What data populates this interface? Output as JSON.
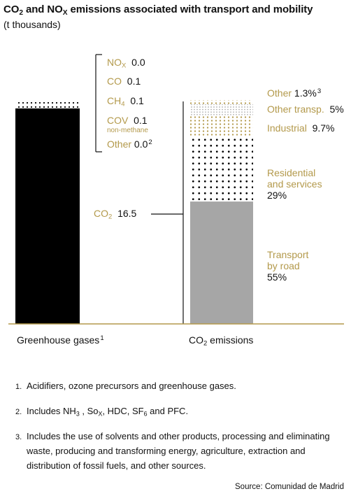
{
  "title": {
    "prefix": "CO",
    "sub1": "2",
    "mid": " and NO",
    "sub2": "X",
    "suffix": " emissions associated with transport and mobility"
  },
  "subtitle": "(t thousands)",
  "colors": {
    "gold": "#b3994b",
    "black": "#000000",
    "gray": "#a6a6a6",
    "axis": "#b3994b"
  },
  "chart_data": [
    {
      "type": "bar",
      "title": "Greenhouse gases",
      "title_sup": "1",
      "unit": "t thousands",
      "segments": [
        {
          "name": "NO",
          "name_sub": "X",
          "value": 0.0,
          "value_label": "0.0"
        },
        {
          "name": "CO",
          "value": 0.1,
          "value_label": "0.1"
        },
        {
          "name": "CH",
          "name_sub": "4",
          "value": 0.1,
          "value_label": "0.1"
        },
        {
          "name": "COV",
          "note": "non-methane",
          "value": 0.1,
          "value_label": "0.1"
        },
        {
          "name": "Other",
          "value": 0.0,
          "value_label": "0.0",
          "sup": "2"
        },
        {
          "name": "CO",
          "name_sub": "2",
          "value": 16.5,
          "value_label": "16.5"
        }
      ]
    },
    {
      "type": "bar",
      "title": "CO",
      "title_sub": "2",
      "title_rest": " emissions",
      "unit": "%",
      "segments": [
        {
          "name": "Transport by road",
          "lines": [
            "Transport",
            "by road"
          ],
          "value": 55,
          "value_label": "55%",
          "pattern": "solid-gray"
        },
        {
          "name": "Residential and services",
          "lines": [
            "Residential",
            "and services"
          ],
          "value": 29,
          "value_label": "29%",
          "pattern": "black-dots"
        },
        {
          "name": "Industrial",
          "value": 9.7,
          "value_label": "9.7%",
          "pattern": "gold-dots"
        },
        {
          "name": "Other transp.",
          "value": 5,
          "value_label": "5%",
          "pattern": "gray-dots"
        },
        {
          "name": "Other",
          "value": 1.3,
          "value_label": "1.3%",
          "sup": "3",
          "pattern": "gold-dots"
        }
      ]
    }
  ],
  "footnotes": [
    {
      "num": "1.",
      "text": "Acidifiers, ozone precursors and greenhouse gases."
    },
    {
      "num": "2.",
      "parts": [
        "Includes NH",
        "3",
        " , So",
        "X",
        ", HDC, SF",
        "6",
        " and PFC."
      ]
    },
    {
      "num": "3.",
      "text": "Includes the use of solvents and other products, processing and eliminating waste, producing and transforming energy, agriculture, extraction and distribution of fossil fuels, and other sources."
    }
  ],
  "source": "Source: Comunidad de Madrid"
}
